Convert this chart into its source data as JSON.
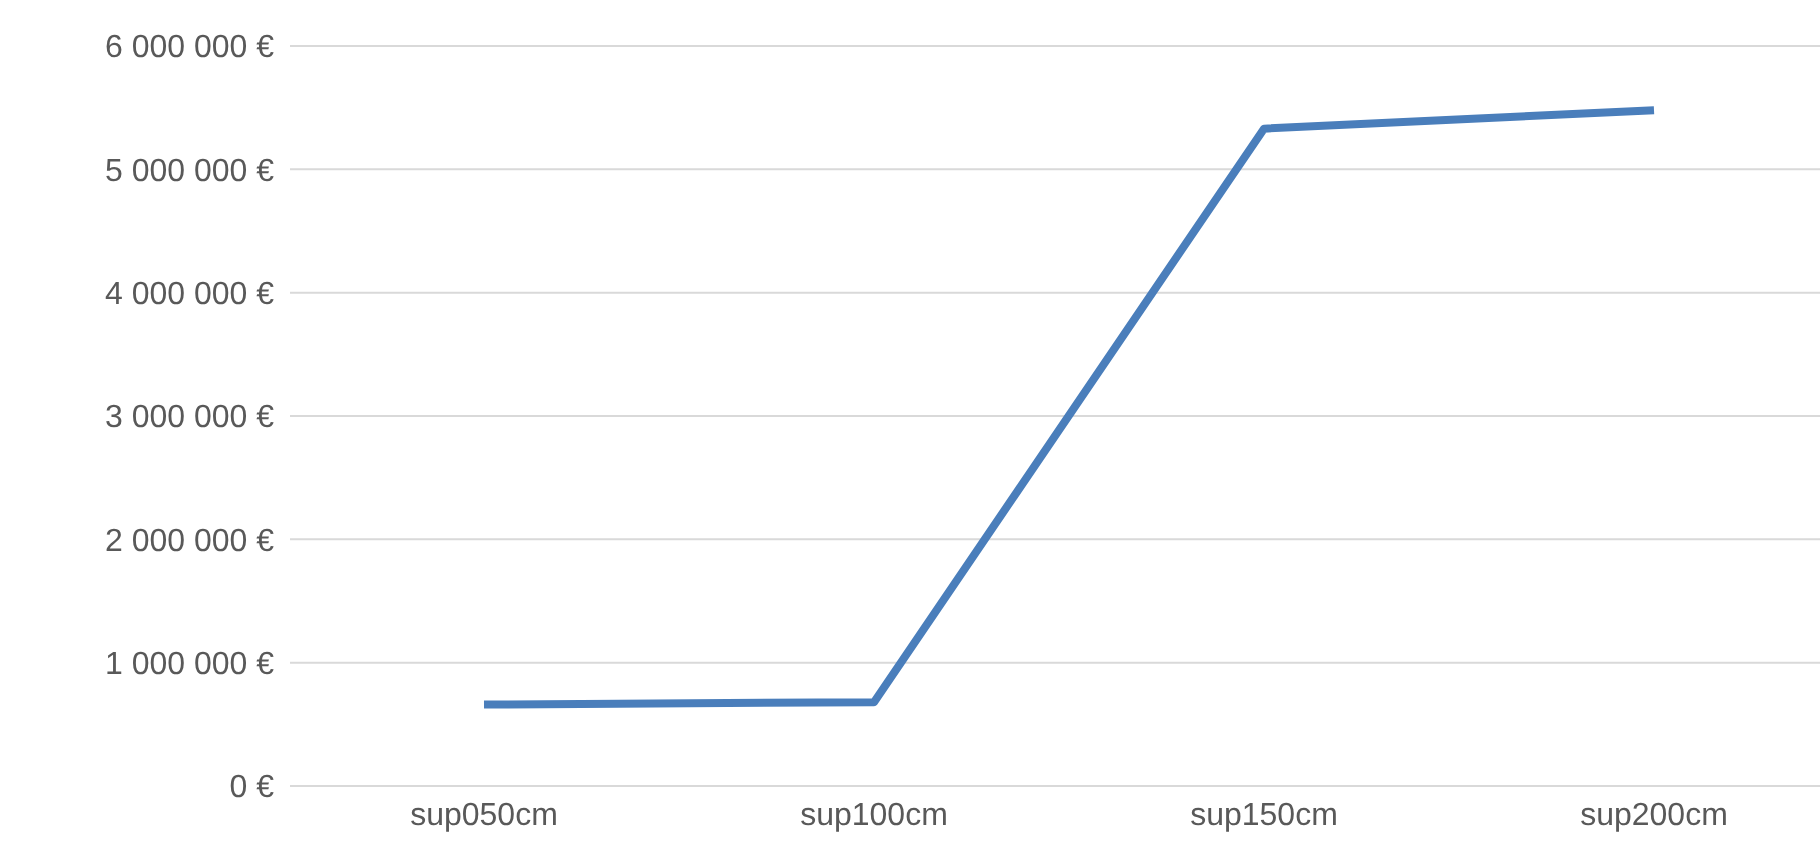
{
  "chart_data": {
    "type": "line",
    "categories": [
      "sup050cm",
      "sup100cm",
      "sup150cm",
      "sup200cm"
    ],
    "series": [
      {
        "color": "#4a7ebb",
        "values": [
          660000,
          680000,
          5330000,
          5480000
        ]
      }
    ],
    "ylim": [
      0,
      6000000
    ],
    "yticks": [
      {
        "value": 0,
        "label": "0 €"
      },
      {
        "value": 1000000,
        "label": "1 000 000 €"
      },
      {
        "value": 2000000,
        "label": "2 000 000 €"
      },
      {
        "value": 3000000,
        "label": "3 000 000 €"
      },
      {
        "value": 4000000,
        "label": "4 000 000 €"
      },
      {
        "value": 5000000,
        "label": "5 000 000 €"
      },
      {
        "value": 6000000,
        "label": "6 000 000 €"
      }
    ],
    "grid": "y",
    "legend": false,
    "marker": "none",
    "line_style": "solid"
  }
}
